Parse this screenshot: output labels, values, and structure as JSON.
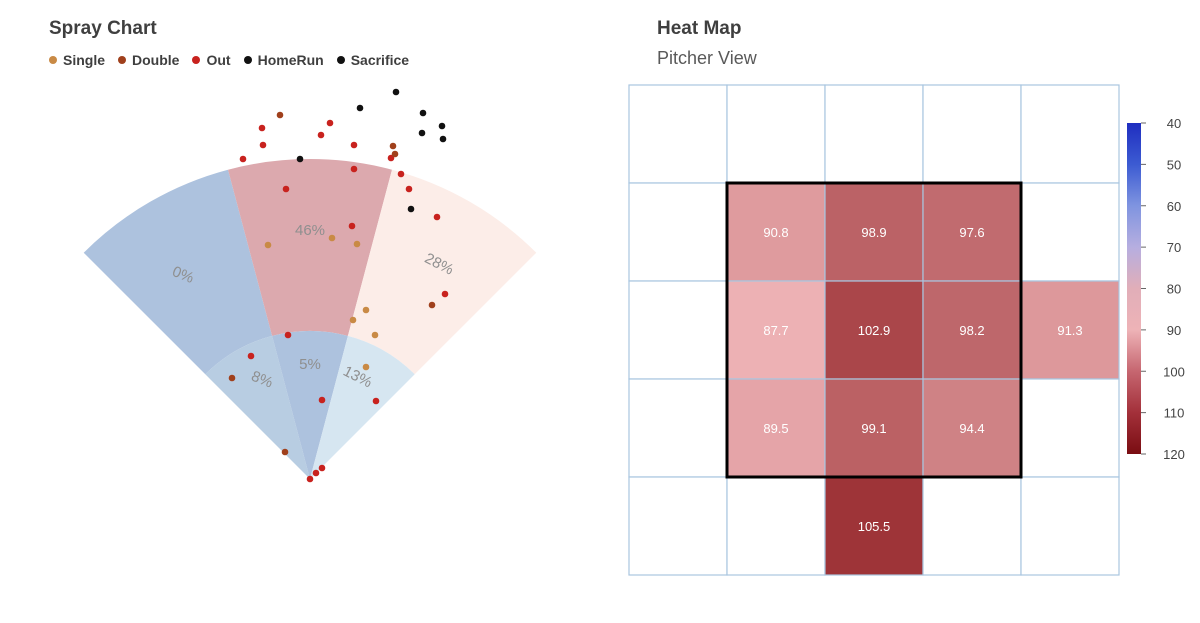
{
  "spray_chart": {
    "title": "Spray Chart",
    "legend": [
      {
        "label": "Single",
        "color": "#c98a45"
      },
      {
        "label": "Double",
        "color": "#a0401c"
      },
      {
        "label": "Out",
        "color": "#c8221e"
      },
      {
        "label": "HomeRun",
        "color": "#111111"
      },
      {
        "label": "Sacrifice",
        "color": "#111111"
      }
    ]
  },
  "heat_map": {
    "title": "Heat Map",
    "subtitle": "Pitcher View"
  },
  "chart_data": [
    {
      "type": "scatter",
      "title": "Spray Chart",
      "zones": [
        {
          "name": "outfield-left",
          "label": "0%",
          "color": "#adc2de"
        },
        {
          "name": "outfield-center",
          "label": "46%",
          "color": "#dca9ae"
        },
        {
          "name": "outfield-right",
          "label": "28%",
          "color": "#fcede8"
        },
        {
          "name": "infield-left",
          "label": "8%",
          "color": "#b8cde2"
        },
        {
          "name": "infield-center",
          "label": "5%",
          "color": "#adc2de"
        },
        {
          "name": "infield-right",
          "label": "13%",
          "color": "#d6e6f1"
        }
      ],
      "points": [
        {
          "type": "Out",
          "x": -48,
          "y": 351
        },
        {
          "type": "Double",
          "x": -30,
          "y": 364
        },
        {
          "type": "Out",
          "x": 20,
          "y": 356
        },
        {
          "type": "Out",
          "x": -67,
          "y": 320
        },
        {
          "type": "Out",
          "x": -47,
          "y": 334
        },
        {
          "type": "Out",
          "x": 11,
          "y": 344
        },
        {
          "type": "Out",
          "x": 44,
          "y": 334
        },
        {
          "type": "Double",
          "x": 83,
          "y": 333
        },
        {
          "type": "Sacrifice",
          "x": 50,
          "y": 371
        },
        {
          "type": "HomeRun",
          "x": 86,
          "y": 387
        },
        {
          "type": "HomeRun",
          "x": -10,
          "y": 320
        },
        {
          "type": "HomeRun",
          "x": 113,
          "y": 366
        },
        {
          "type": "HomeRun",
          "x": 132,
          "y": 353
        },
        {
          "type": "HomeRun",
          "x": 101,
          "y": 270
        },
        {
          "type": "HomeRun",
          "x": 112,
          "y": 346
        },
        {
          "type": "HomeRun",
          "x": 133,
          "y": 340
        },
        {
          "type": "Out",
          "x": 81,
          "y": 321
        },
        {
          "type": "Out",
          "x": 91,
          "y": 305
        },
        {
          "type": "Out",
          "x": 99,
          "y": 290
        },
        {
          "type": "Out",
          "x": 127,
          "y": 262
        },
        {
          "type": "Double",
          "x": 85,
          "y": 325
        },
        {
          "type": "Out",
          "x": 44,
          "y": 310
        },
        {
          "type": "Out",
          "x": -24,
          "y": 290
        },
        {
          "type": "Out",
          "x": 42,
          "y": 253
        },
        {
          "type": "Single",
          "x": 22,
          "y": 241
        },
        {
          "type": "Single",
          "x": 47,
          "y": 235
        },
        {
          "type": "Single",
          "x": -42,
          "y": 234
        },
        {
          "type": "Single",
          "x": 56,
          "y": 169
        },
        {
          "type": "Single",
          "x": 43,
          "y": 159
        },
        {
          "type": "Single",
          "x": 65,
          "y": 144
        },
        {
          "type": "Single",
          "x": 56,
          "y": 112
        },
        {
          "type": "Out",
          "x": 135,
          "y": 185
        },
        {
          "type": "Double",
          "x": 122,
          "y": 174
        },
        {
          "type": "Out",
          "x": -22,
          "y": 144
        },
        {
          "type": "Out",
          "x": -59,
          "y": 123
        },
        {
          "type": "Double",
          "x": -78,
          "y": 101
        },
        {
          "type": "Out",
          "x": 12,
          "y": 79
        },
        {
          "type": "Out",
          "x": 66,
          "y": 78
        },
        {
          "type": "Double",
          "x": -25,
          "y": 27
        },
        {
          "type": "Out",
          "x": 12,
          "y": 11
        },
        {
          "type": "Out",
          "x": 6,
          "y": 6
        },
        {
          "type": "Out",
          "x": 0,
          "y": 0
        }
      ]
    },
    {
      "type": "heatmap",
      "title": "Heat Map",
      "subtitle": "Pitcher View",
      "rows": 5,
      "cols": 5,
      "values": [
        [
          null,
          null,
          null,
          null,
          null
        ],
        [
          null,
          90.8,
          98.9,
          97.6,
          null
        ],
        [
          null,
          87.7,
          102.9,
          98.2,
          91.3
        ],
        [
          null,
          89.5,
          99.1,
          94.4,
          null
        ],
        [
          null,
          null,
          105.5,
          null,
          null
        ]
      ],
      "colorbar": {
        "min": 40,
        "max": 120,
        "ticks": [
          "40",
          "50",
          "60",
          "70",
          "80",
          "90",
          "100",
          "110",
          "120"
        ],
        "colors": [
          "#1f2ec0",
          "#3c5bd2",
          "#7f94e0",
          "#b6aee0",
          "#e1aeb8",
          "#eeb3b7",
          "#c66670",
          "#a3303a",
          "#7a0d12"
        ]
      },
      "strike_zone": {
        "row_start": 1,
        "row_end": 3,
        "col_start": 1,
        "col_end": 3
      }
    }
  ]
}
